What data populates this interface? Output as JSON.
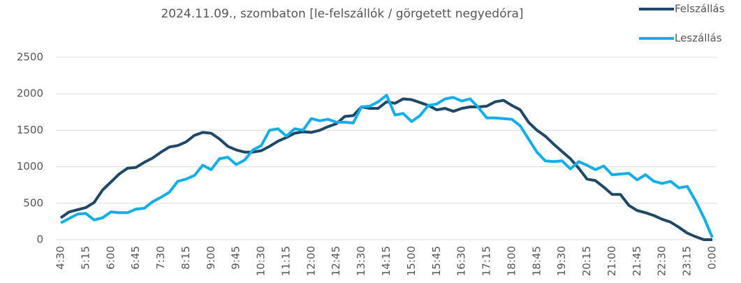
{
  "chart_data": {
    "type": "line",
    "subtitle": "2024.11.09., szombaton [le-felszállók / görgetett negyedóra]",
    "categories": [
      "4:30",
      null,
      null,
      "5:15",
      null,
      null,
      "6:00",
      null,
      null,
      "6:45",
      null,
      null,
      "7:30",
      null,
      null,
      "8:15",
      null,
      null,
      "9:00",
      null,
      null,
      "9:45",
      null,
      null,
      "10:30",
      null,
      null,
      "11:15",
      null,
      null,
      "12:00",
      null,
      null,
      "12:45",
      null,
      null,
      "13:30",
      null,
      null,
      "14:15",
      null,
      null,
      "15:00",
      null,
      null,
      "15:45",
      null,
      null,
      "16:30",
      null,
      null,
      "17:15",
      null,
      null,
      "18:00",
      null,
      null,
      "18:45",
      null,
      null,
      "19:30",
      null,
      null,
      "20:15",
      null,
      null,
      "21:00",
      null,
      null,
      "21:45",
      null,
      null,
      "22:30",
      null,
      null,
      "23:15",
      null,
      null,
      "0:00"
    ],
    "series": [
      {
        "name": "Felszállás",
        "color": "#1f4866",
        "values": [
          300,
          380,
          410,
          440,
          510,
          680,
          790,
          900,
          980,
          990,
          1060,
          1120,
          1200,
          1270,
          1290,
          1340,
          1430,
          1470,
          1460,
          1380,
          1280,
          1230,
          1200,
          1200,
          1220,
          1280,
          1350,
          1400,
          1460,
          1480,
          1470,
          1500,
          1550,
          1590,
          1690,
          1700,
          1820,
          1800,
          1800,
          1890,
          1870,
          1930,
          1920,
          1880,
          1840,
          1780,
          1800,
          1760,
          1800,
          1820,
          1820,
          1830,
          1890,
          1910,
          1840,
          1780,
          1610,
          1500,
          1420,
          1310,
          1210,
          1110,
          980,
          830,
          810,
          720,
          620,
          620,
          470,
          400,
          370,
          330,
          280,
          240,
          170,
          90,
          40,
          0,
          0
        ]
      },
      {
        "name": "Leszállás",
        "color": "#12aee8",
        "values": [
          230,
          290,
          350,
          360,
          270,
          300,
          380,
          370,
          370,
          420,
          430,
          520,
          580,
          650,
          800,
          830,
          880,
          1020,
          960,
          1110,
          1130,
          1030,
          1090,
          1230,
          1290,
          1500,
          1520,
          1420,
          1520,
          1500,
          1660,
          1630,
          1650,
          1610,
          1610,
          1600,
          1820,
          1830,
          1890,
          1980,
          1710,
          1730,
          1620,
          1700,
          1840,
          1860,
          1930,
          1950,
          1900,
          1930,
          1810,
          1670,
          1670,
          1660,
          1650,
          1560,
          1380,
          1200,
          1080,
          1070,
          1080,
          970,
          1070,
          1020,
          960,
          1010,
          890,
          900,
          910,
          820,
          890,
          800,
          770,
          800,
          710,
          730,
          530,
          300,
          30
        ]
      }
    ],
    "ylim": [
      0,
      2500
    ],
    "yticks": [
      0,
      500,
      1000,
      1500,
      2000,
      2500
    ],
    "grid": true,
    "legend": "top-right"
  }
}
